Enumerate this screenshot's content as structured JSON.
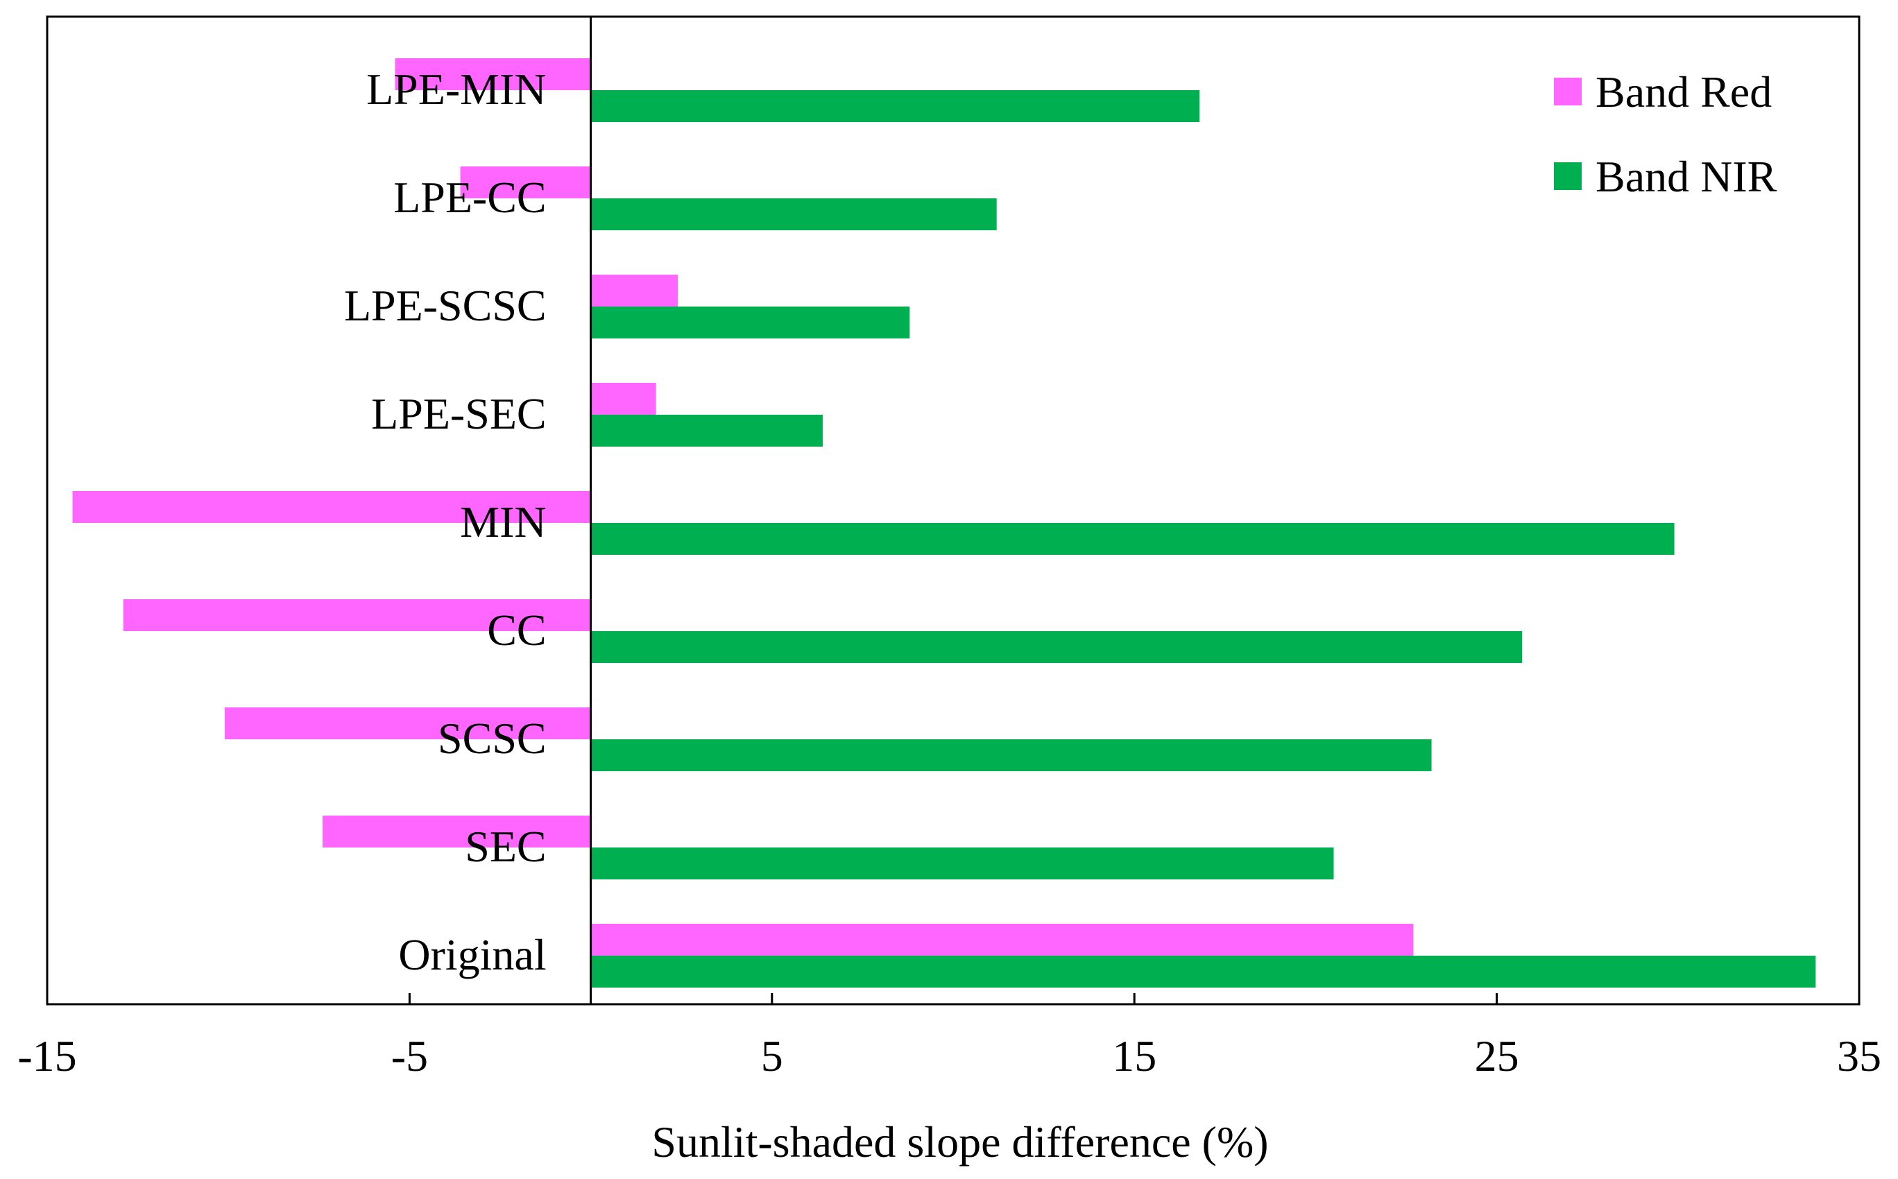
{
  "chart_data": {
    "type": "bar",
    "orientation": "horizontal",
    "title": "",
    "xlabel": "Sunlit-shaded slope difference (%)",
    "ylabel": "",
    "xlim": [
      -15,
      35
    ],
    "xticks": [
      -15,
      -5,
      5,
      15,
      25,
      35
    ],
    "xtick_labels": [
      "-15",
      "-5",
      "5",
      "15",
      "25",
      "35"
    ],
    "grid": false,
    "legend_position": "top-right",
    "categories": [
      "LPE-MIN",
      "LPE-CC",
      "LPE-SCSC",
      "LPE-SEC",
      "MIN",
      "CC",
      "SCSC",
      "SEC",
      "Original"
    ],
    "series": [
      {
        "name": "Band Red",
        "color": "#FF66FF",
        "values": [
          -5.4,
          -3.6,
          2.4,
          1.8,
          -14.3,
          -12.9,
          -10.1,
          -7.4,
          22.7
        ]
      },
      {
        "name": "Band NIR",
        "color": "#00B050",
        "values": [
          16.8,
          11.2,
          8.8,
          6.4,
          29.9,
          25.7,
          23.2,
          20.5,
          33.8
        ]
      }
    ]
  }
}
